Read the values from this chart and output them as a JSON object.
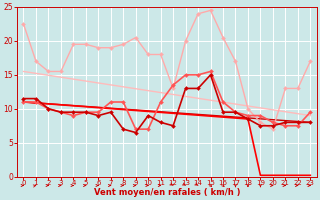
{
  "background_color": "#cce8e8",
  "grid_color": "#ffffff",
  "xlabel": "Vent moyen/en rafales ( km/h )",
  "xlabel_color": "#cc0000",
  "tick_color": "#cc0000",
  "xlim": [
    -0.5,
    23.5
  ],
  "ylim": [
    0,
    25
  ],
  "yticks": [
    0,
    5,
    10,
    15,
    20,
    25
  ],
  "xticks": [
    0,
    1,
    2,
    3,
    4,
    5,
    6,
    7,
    8,
    9,
    10,
    11,
    12,
    13,
    14,
    15,
    16,
    17,
    18,
    19,
    20,
    21,
    22,
    23
  ],
  "lines": [
    {
      "x": [
        0,
        1,
        2,
        3,
        4,
        5,
        6,
        7,
        8,
        9,
        10,
        11,
        12,
        13,
        14,
        15,
        16,
        17,
        18,
        19,
        20,
        21,
        22,
        23
      ],
      "y": [
        22.5,
        17,
        15.5,
        15.5,
        19.5,
        19.5,
        19,
        19,
        19.5,
        20.5,
        18,
        18,
        13,
        20,
        24,
        24.5,
        20.5,
        17,
        10,
        8,
        7,
        13,
        13,
        17
      ],
      "color": "#ffaaaa",
      "linewidth": 1.0,
      "marker": "D",
      "markersize": 2.0,
      "zorder": 3
    },
    {
      "x": [
        0,
        1,
        2,
        3,
        4,
        5,
        6,
        7,
        8,
        9,
        10,
        11,
        12,
        13,
        14,
        15,
        16,
        17,
        18,
        19,
        20,
        21,
        22,
        23
      ],
      "y": [
        11,
        11,
        10,
        9.5,
        9,
        9.5,
        9.5,
        11,
        11,
        7,
        7,
        11,
        13.5,
        15,
        15,
        15.5,
        11,
        9.5,
        9,
        9,
        8,
        7.5,
        7.5,
        9.5
      ],
      "color": "#ff5555",
      "linewidth": 1.2,
      "marker": "D",
      "markersize": 2.0,
      "zorder": 4
    },
    {
      "x": [
        0,
        1,
        2,
        3,
        4,
        5,
        6,
        7,
        8,
        9,
        10,
        11,
        12,
        13,
        14,
        15,
        16,
        17,
        18,
        19,
        20,
        21,
        22,
        23
      ],
      "y": [
        11.5,
        11.5,
        10,
        9.5,
        9.5,
        9.5,
        9,
        9.5,
        7,
        6.5,
        9,
        8,
        7.5,
        13,
        13,
        15,
        9.5,
        9.5,
        8.5,
        7.5,
        7.5,
        8,
        8,
        8
      ],
      "color": "#cc0000",
      "linewidth": 1.2,
      "marker": "D",
      "markersize": 2.0,
      "zorder": 5
    },
    {
      "x": [
        0,
        23
      ],
      "y": [
        15.5,
        9.0
      ],
      "color": "#ffbbbb",
      "linewidth": 1.0,
      "marker": null,
      "markersize": 0,
      "zorder": 2
    },
    {
      "x": [
        0,
        23
      ],
      "y": [
        11.0,
        8.0
      ],
      "color": "#cc0000",
      "linewidth": 1.0,
      "marker": null,
      "markersize": 0,
      "zorder": 2
    },
    {
      "x": [
        0,
        18,
        19,
        23
      ],
      "y": [
        11.0,
        8.5,
        0.2,
        0.2
      ],
      "color": "#ff0000",
      "linewidth": 1.2,
      "marker": null,
      "markersize": 0,
      "zorder": 2
    }
  ]
}
